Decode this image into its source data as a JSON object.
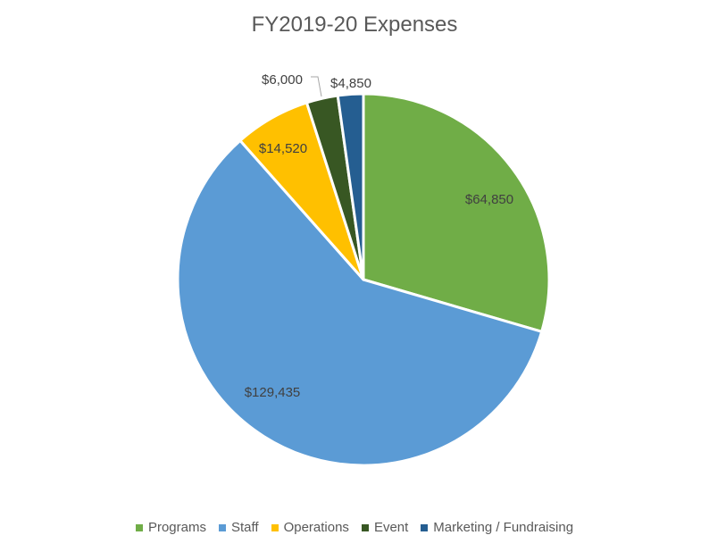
{
  "chart_data": {
    "type": "pie",
    "title": "FY2019-20 Expenses",
    "start_angle_deg": 0,
    "direction": "clockwise",
    "legend_position": "bottom",
    "slices": [
      {
        "name": "Programs",
        "value": 64850,
        "label": "$64,850",
        "color": "#70AD47"
      },
      {
        "name": "Staff",
        "value": 129435,
        "label": "$129,435",
        "color": "#5B9BD5"
      },
      {
        "name": "Operations",
        "value": 14520,
        "label": "$14,520",
        "color": "#FFC000"
      },
      {
        "name": "Event",
        "value": 6000,
        "label": "$6,000",
        "color": "#385723"
      },
      {
        "name": "Marketing / Fundraising",
        "value": 4850,
        "label": "$4,850",
        "color": "#255E91"
      }
    ]
  }
}
